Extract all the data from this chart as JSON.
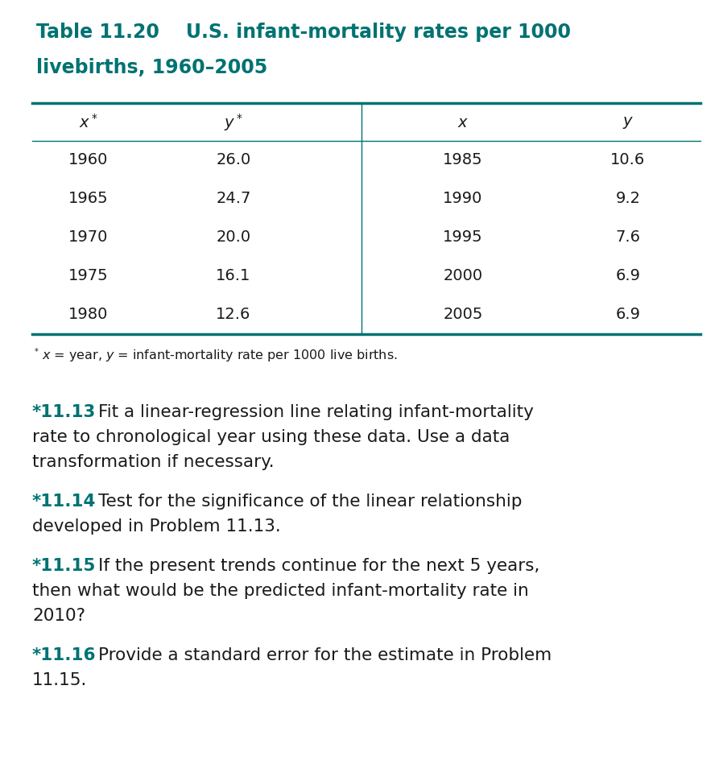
{
  "title_line1": "Table 11.20    U.S. infant-mortality rates per 1000",
  "title_line2": "livebirths, 1960–2005",
  "title_color": "#007272",
  "table_data_left": [
    [
      "1960",
      "26.0"
    ],
    [
      "1965",
      "24.7"
    ],
    [
      "1970",
      "20.0"
    ],
    [
      "1975",
      "16.1"
    ],
    [
      "1980",
      "12.6"
    ]
  ],
  "table_data_right": [
    [
      "1985",
      "10.6"
    ],
    [
      "1990",
      "9.2"
    ],
    [
      "1995",
      "7.6"
    ],
    [
      "2000",
      "6.9"
    ],
    [
      "2005",
      "6.9"
    ]
  ],
  "problems": [
    {
      "number": "*11.13",
      "lines": [
        "Fit a linear-regression line relating infant-mortality",
        "rate to chronological year using these data. Use a data",
        "transformation if necessary."
      ]
    },
    {
      "number": "*11.14",
      "lines": [
        "Test for the significance of the linear relationship",
        "developed in Problem 11.13."
      ]
    },
    {
      "number": "*11.15",
      "lines": [
        "If the present trends continue for the next 5 years,",
        "then what would be the predicted infant-mortality rate in",
        "2010?"
      ]
    },
    {
      "number": "*11.16",
      "lines": [
        "Provide a standard error for the estimate in Problem",
        "11.15."
      ]
    }
  ],
  "teal_color": "#007272",
  "black_color": "#1a1a1a",
  "bg_color": "#ffffff",
  "table_line_color": "#007272"
}
